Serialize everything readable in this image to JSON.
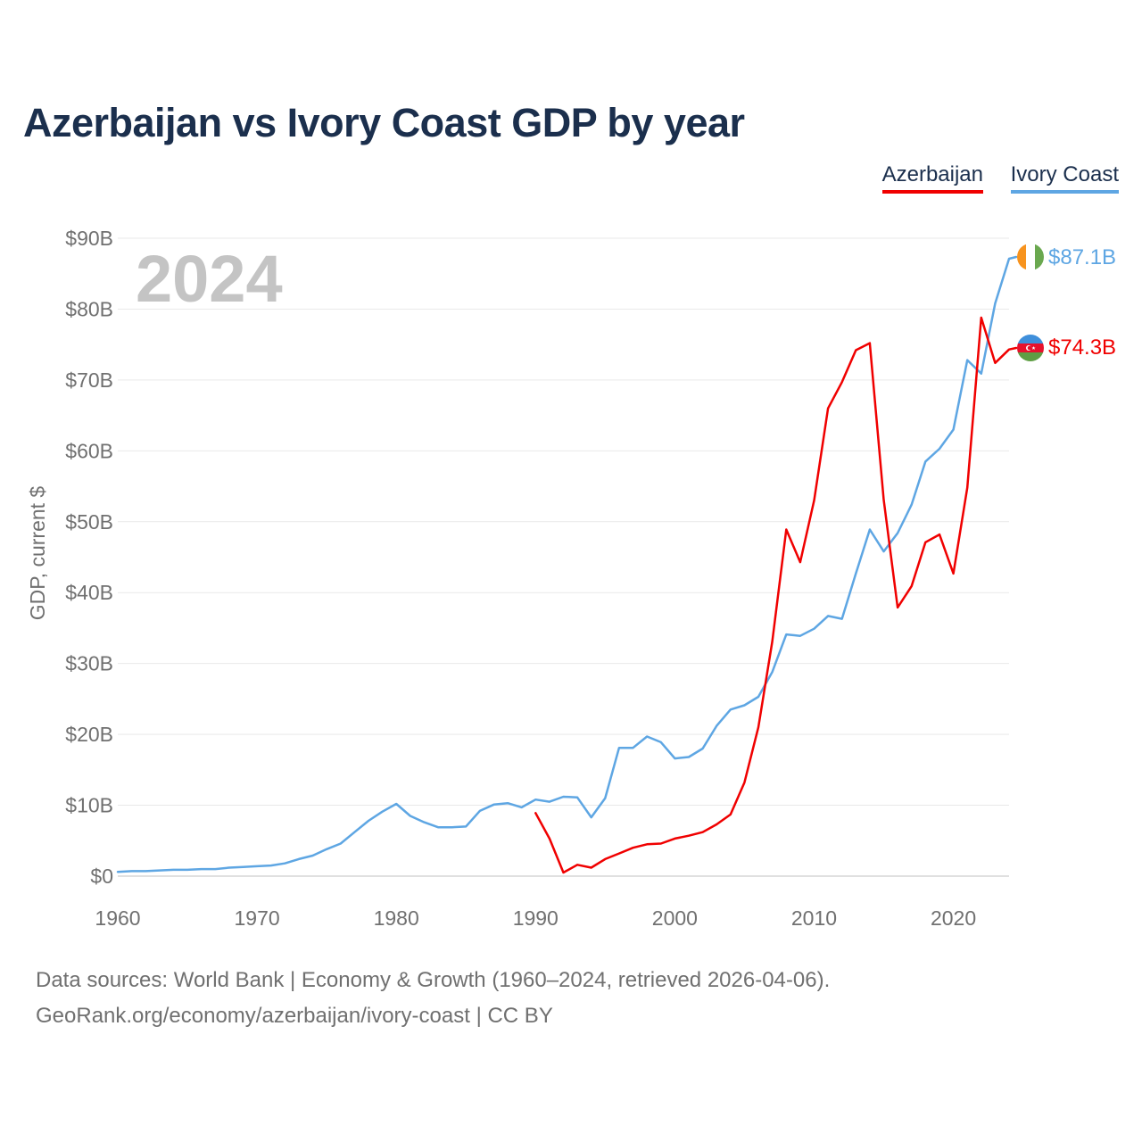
{
  "title": "Azerbaijan vs Ivory Coast GDP by year",
  "legend": [
    {
      "name": "Azerbaijan",
      "color": "#f00000"
    },
    {
      "name": "Ivory Coast",
      "color": "#5ea6e3"
    }
  ],
  "source": {
    "line1": "Data sources: World Bank | Economy & Growth (1960–2024, retrieved 2026-04-06).",
    "line2": "GeoRank.org/economy/azerbaijan/ivory-coast | CC BY"
  },
  "chart_data": {
    "type": "line",
    "title": "Azerbaijan vs Ivory Coast GDP by year",
    "year_label": "2024",
    "ylabel": "GDP, current $",
    "xlabel": "",
    "xlim": [
      1960,
      2024
    ],
    "ylim": [
      0,
      90
    ],
    "y_unit": "billion USD",
    "yticks": [
      0,
      10,
      20,
      30,
      40,
      50,
      60,
      70,
      80,
      90
    ],
    "ytick_labels": [
      "$0",
      "$10B",
      "$20B",
      "$30B",
      "$40B",
      "$50B",
      "$60B",
      "$70B",
      "$80B",
      "$90B"
    ],
    "xticks": [
      1960,
      1970,
      1980,
      1990,
      2000,
      2010,
      2020
    ],
    "xtick_labels": [
      "1960",
      "1970",
      "1980",
      "1990",
      "2000",
      "2010",
      "2020"
    ],
    "grid": true,
    "legend_position": "top-right",
    "series": [
      {
        "name": "Azerbaijan",
        "color": "#f00000",
        "end_label": "$74.3B",
        "flag_icon": "azerbaijan-flag-icon",
        "x": [
          1990,
          1991,
          1992,
          1993,
          1994,
          1995,
          1996,
          1997,
          1998,
          1999,
          2000,
          2001,
          2002,
          2003,
          2004,
          2005,
          2006,
          2007,
          2008,
          2009,
          2010,
          2011,
          2012,
          2013,
          2014,
          2015,
          2016,
          2017,
          2018,
          2019,
          2020,
          2021,
          2022,
          2023,
          2024
        ],
        "values": [
          8.9,
          5.3,
          0.5,
          1.6,
          1.2,
          2.4,
          3.2,
          4.0,
          4.5,
          4.6,
          5.3,
          5.7,
          6.2,
          7.3,
          8.7,
          13.2,
          21.0,
          33.1,
          48.9,
          44.3,
          53.0,
          66.0,
          69.7,
          74.2,
          75.2,
          53.1,
          37.9,
          40.9,
          47.1,
          48.2,
          42.7,
          54.8,
          78.8,
          72.4,
          74.3
        ]
      },
      {
        "name": "Ivory Coast",
        "color": "#5ea6e3",
        "end_label": "$87.1B",
        "flag_icon": "ivory-coast-flag-icon",
        "x": [
          1960,
          1961,
          1962,
          1963,
          1964,
          1965,
          1966,
          1967,
          1968,
          1969,
          1970,
          1971,
          1972,
          1973,
          1974,
          1975,
          1976,
          1977,
          1978,
          1979,
          1980,
          1981,
          1982,
          1983,
          1984,
          1985,
          1986,
          1987,
          1988,
          1989,
          1990,
          1991,
          1992,
          1993,
          1994,
          1995,
          1996,
          1997,
          1998,
          1999,
          2000,
          2001,
          2002,
          2003,
          2004,
          2005,
          2006,
          2007,
          2008,
          2009,
          2010,
          2011,
          2012,
          2013,
          2014,
          2015,
          2016,
          2017,
          2018,
          2019,
          2020,
          2021,
          2022,
          2023,
          2024
        ],
        "values": [
          0.6,
          0.7,
          0.7,
          0.8,
          0.9,
          0.9,
          1.0,
          1.0,
          1.2,
          1.3,
          1.4,
          1.5,
          1.8,
          2.4,
          2.9,
          3.8,
          4.6,
          6.2,
          7.8,
          9.1,
          10.2,
          8.5,
          7.6,
          6.9,
          6.9,
          7.0,
          9.2,
          10.1,
          10.3,
          9.7,
          10.8,
          10.5,
          11.2,
          11.1,
          8.3,
          11.0,
          18.1,
          18.1,
          19.7,
          18.9,
          16.6,
          16.8,
          18.0,
          21.2,
          23.5,
          24.1,
          25.3,
          28.8,
          34.1,
          33.9,
          34.9,
          36.7,
          36.3,
          42.7,
          48.9,
          45.8,
          48.4,
          52.4,
          58.5,
          60.3,
          63.0,
          72.8,
          70.9,
          80.8,
          87.1
        ]
      }
    ]
  }
}
